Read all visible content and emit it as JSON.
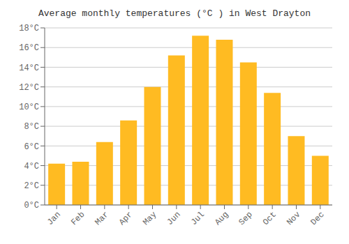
{
  "chart_data": {
    "type": "bar",
    "title": "Average monthly temperatures (°C ) in West Drayton",
    "categories": [
      "Jan",
      "Feb",
      "Mar",
      "Apr",
      "May",
      "Jun",
      "Jul",
      "Aug",
      "Sep",
      "Oct",
      "Nov",
      "Dec"
    ],
    "values": [
      4.2,
      4.4,
      6.4,
      8.6,
      12.0,
      15.2,
      17.2,
      16.8,
      14.5,
      11.4,
      7.0,
      5.0
    ],
    "color": "#FFBB22",
    "ylim": [
      0,
      18
    ],
    "yticks": [
      {
        "value": 0,
        "label": "0°C"
      },
      {
        "value": 2,
        "label": "2°C"
      },
      {
        "value": 4,
        "label": "4°C"
      },
      {
        "value": 6,
        "label": "6°C"
      },
      {
        "value": 8,
        "label": "8°C"
      },
      {
        "value": 10,
        "label": "10°C"
      },
      {
        "value": 12,
        "label": "12°C"
      },
      {
        "value": 14,
        "label": "14°C"
      },
      {
        "value": 16,
        "label": "16°C"
      },
      {
        "value": 18,
        "label": "18°C"
      }
    ],
    "grid": true
  }
}
